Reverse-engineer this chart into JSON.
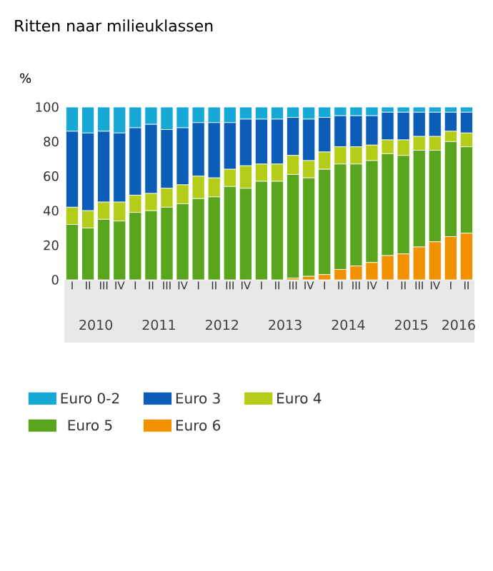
{
  "chart_data": {
    "type": "bar",
    "stacked": true,
    "title": "Ritten naar milieuklassen",
    "ylabel": "%",
    "categories": [
      "I",
      "II",
      "III",
      "IV",
      "I",
      "II",
      "III",
      "IV",
      "I",
      "II",
      "III",
      "IV",
      "I",
      "II",
      "III",
      "IV",
      "I",
      "II",
      "III",
      "IV",
      "I",
      "II",
      "III",
      "IV",
      "I",
      "II"
    ],
    "annotations": [
      "2010",
      "2011",
      "2012",
      "2013",
      "2014",
      "2015",
      "2016"
    ],
    "series": [
      {
        "name": "Euro 6",
        "color": "#f29100",
        "values": [
          0,
          0,
          0,
          0,
          0,
          0,
          0,
          0,
          0,
          0,
          0,
          0,
          0,
          0,
          1,
          2,
          3,
          6,
          8,
          10,
          14,
          15,
          19,
          22,
          25,
          27
        ]
      },
      {
        "name": "Euro 5",
        "color": "#5aa51e",
        "values": [
          32,
          30,
          35,
          34,
          39,
          40,
          42,
          44,
          47,
          48,
          54,
          53,
          57,
          57,
          60,
          57,
          61,
          61,
          59,
          59,
          59,
          57,
          56,
          53,
          55,
          50
        ]
      },
      {
        "name": "Euro 4",
        "color": "#b5cc18",
        "values": [
          10,
          10,
          10,
          11,
          10,
          10,
          11,
          11,
          13,
          11,
          10,
          13,
          10,
          10,
          11,
          10,
          10,
          10,
          10,
          9,
          8,
          9,
          8,
          8,
          6,
          8
        ]
      },
      {
        "name": "Euro 3",
        "color": "#0b5db8",
        "values": [
          44,
          45,
          41,
          40,
          39,
          40,
          34,
          33,
          31,
          32,
          27,
          27,
          26,
          26,
          22,
          24,
          20,
          18,
          18,
          17,
          16,
          16,
          14,
          14,
          11,
          12
        ]
      },
      {
        "name": "Euro 0-2",
        "color": "#16a9d6",
        "values": [
          14,
          15,
          14,
          15,
          12,
          10,
          13,
          12,
          9,
          9,
          9,
          7,
          7,
          7,
          6,
          7,
          6,
          5,
          5,
          5,
          3,
          3,
          3,
          3,
          3,
          3
        ]
      }
    ],
    "ylim": [
      0,
      100
    ],
    "yticks": [
      0,
      20,
      40,
      60,
      80,
      100
    ],
    "grid": false,
    "legend": "bottom"
  }
}
